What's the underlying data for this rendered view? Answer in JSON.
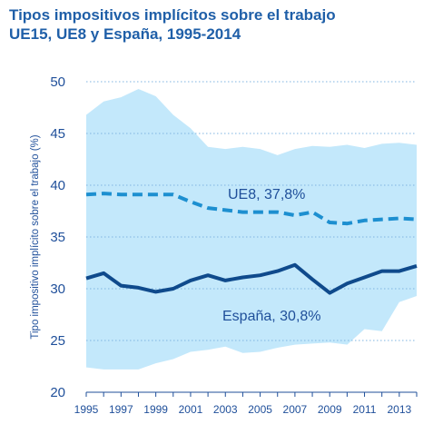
{
  "chart_data": {
    "type": "area",
    "title": "Tipos impositivos implícitos sobre el trabajo",
    "subtitle": "UE15, UE8 y España, 1995-2014",
    "ylabel": "Tipo impositivo implícito sobre el trabajo (%)",
    "xlabel": "",
    "ylim": [
      20,
      50
    ],
    "xlim": [
      1995,
      2014
    ],
    "yticks": [
      20,
      25,
      30,
      35,
      40,
      45,
      50
    ],
    "xticks": [
      "1995",
      "1997",
      "1999",
      "2001",
      "2003",
      "2005",
      "2007",
      "2009",
      "2011",
      "2013"
    ],
    "grid": "horizontal-dotted",
    "x": [
      1995,
      1996,
      1997,
      1998,
      1999,
      2000,
      2001,
      2002,
      2003,
      2004,
      2005,
      2006,
      2007,
      2008,
      2009,
      2010,
      2011,
      2012,
      2013,
      2014
    ],
    "band": {
      "upper": [
        46.8,
        48.1,
        48.5,
        49.3,
        48.6,
        46.8,
        45.5,
        43.7,
        43.5,
        43.7,
        43.5,
        42.9,
        43.5,
        43.8,
        43.7,
        43.9,
        43.6,
        44.0,
        44.1,
        43.9
      ],
      "lower": [
        22.4,
        22.2,
        22.2,
        22.2,
        22.8,
        23.2,
        23.9,
        24.1,
        24.4,
        23.8,
        23.9,
        24.3,
        24.6,
        24.7,
        24.8,
        24.6,
        26.1,
        25.9,
        28.7,
        29.3
      ]
    },
    "series": [
      {
        "name": "UE8, 37,8%",
        "style": "dashed",
        "color": "#1d8fd0",
        "values": [
          39.1,
          39.2,
          39.1,
          39.1,
          39.1,
          39.1,
          38.4,
          37.8,
          37.6,
          37.4,
          37.4,
          37.4,
          37.1,
          37.4,
          36.4,
          36.3,
          36.6,
          36.7,
          36.8,
          36.7
        ]
      },
      {
        "name": "España, 30,8%",
        "style": "solid",
        "color": "#0f4a8c",
        "values": [
          31.0,
          31.5,
          30.3,
          30.1,
          29.7,
          30.0,
          30.8,
          31.3,
          30.8,
          31.1,
          31.3,
          31.7,
          32.3,
          30.9,
          29.6,
          30.5,
          31.1,
          31.7,
          31.7,
          32.2
        ]
      }
    ],
    "annotations": [
      "UE8, 37,8%",
      "España, 30,8%"
    ],
    "colors": {
      "band": "#c3e8fb",
      "grid": "#7fb5e0",
      "axis": "#1f4f9a",
      "title": "#1f5fa8"
    }
  }
}
